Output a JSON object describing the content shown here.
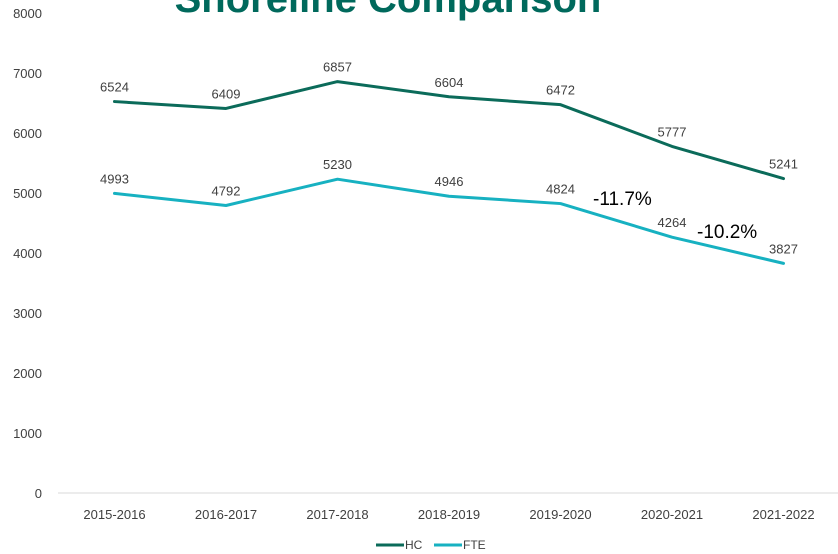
{
  "colors": {
    "hc": "#0b6b5a",
    "fte": "#17b1c1",
    "axis": "#d9d9d9",
    "title": "#00695c"
  },
  "chart_data": {
    "type": "line",
    "title": "Shoreline Comparison",
    "categories": [
      "2015-2016",
      "2016-2017",
      "2017-2018",
      "2018-2019",
      "2019-2020",
      "2020-2021",
      "2021-2022"
    ],
    "series": [
      {
        "name": "HC",
        "values": [
          6524,
          6409,
          6857,
          6604,
          6472,
          5777,
          5241
        ]
      },
      {
        "name": "FTE",
        "values": [
          4993,
          4792,
          5230,
          4946,
          4824,
          4264,
          3827
        ]
      }
    ],
    "ylim": [
      0,
      8000
    ],
    "yticks": [
      0,
      1000,
      2000,
      3000,
      4000,
      5000,
      6000,
      7000,
      8000
    ],
    "grid": false,
    "legend": "bottom",
    "annotations": [
      "-11.7%",
      "-10.2%"
    ]
  }
}
